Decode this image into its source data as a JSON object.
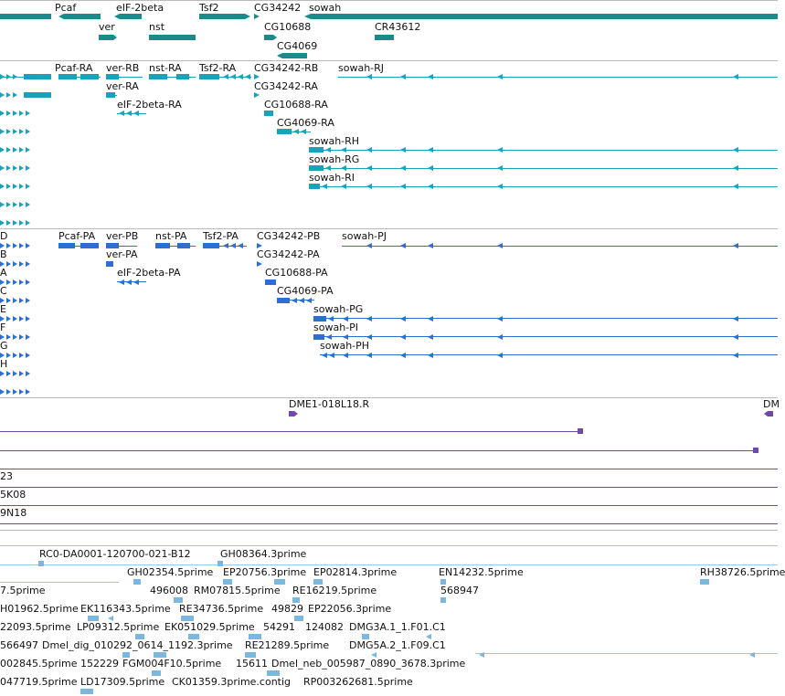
{
  "colors": {
    "gene": "#1a8a8c",
    "transcript_a": "#1aa3b8",
    "transcript_b": "#2b6fd0",
    "clone": "#7049a6",
    "est": "#7ab8e0",
    "divider": "#bbbbbb"
  },
  "genes": [
    {
      "label": "Pcaf"
    },
    {
      "label": "eIF-2beta"
    },
    {
      "label": "Tsf2"
    },
    {
      "label": "CG34242"
    },
    {
      "label": "sowah"
    },
    {
      "label": "ver"
    },
    {
      "label": "nst"
    },
    {
      "label": "CG10688"
    },
    {
      "label": "CR43612"
    },
    {
      "label": "CG4069"
    }
  ],
  "transcripts_a": [
    {
      "label": "Pcaf-RA"
    },
    {
      "label": "ver-RB"
    },
    {
      "label": "nst-RA"
    },
    {
      "label": "Tsf2-RA"
    },
    {
      "label": "CG34242-RB"
    },
    {
      "label": "sowah-RJ"
    },
    {
      "label": "ver-RA"
    },
    {
      "label": "CG34242-RA"
    },
    {
      "label": "eIF-2beta-RA"
    },
    {
      "label": "CG10688-RA"
    },
    {
      "label": "CG4069-RA"
    },
    {
      "label": "sowah-RH"
    },
    {
      "label": "sowah-RG"
    },
    {
      "label": "sowah-RI"
    }
  ],
  "transcripts_b": [
    {
      "label": "D"
    },
    {
      "label": "Pcaf-PA"
    },
    {
      "label": "ver-PB"
    },
    {
      "label": "nst-PA"
    },
    {
      "label": "Tsf2-PA"
    },
    {
      "label": "CG34242-PB"
    },
    {
      "label": "sowah-PJ"
    },
    {
      "label": "B"
    },
    {
      "label": "ver-PA"
    },
    {
      "label": "CG34242-PA"
    },
    {
      "label": "A"
    },
    {
      "label": "eIF-2beta-PA"
    },
    {
      "label": "CG10688-PA"
    },
    {
      "label": "C"
    },
    {
      "label": "CG4069-PA"
    },
    {
      "label": "E"
    },
    {
      "label": "sowah-PG"
    },
    {
      "label": "F"
    },
    {
      "label": "sowah-PI"
    },
    {
      "label": "G"
    },
    {
      "label": "sowah-PH"
    },
    {
      "label": "H"
    }
  ],
  "clones": [
    {
      "label": "DME1-018L18.R"
    },
    {
      "label": "DM"
    },
    {
      "label": "23"
    },
    {
      "label": "5K08"
    },
    {
      "label": "9N18"
    }
  ],
  "ests": [
    {
      "label": "RC0-DA0001-120700-021-B12"
    },
    {
      "label": "GH08364.3prime"
    },
    {
      "label": "GH02354.5prime"
    },
    {
      "label": "EP20756.3prime"
    },
    {
      "label": "EP02814.3prime"
    },
    {
      "label": "EN14232.5prime"
    },
    {
      "label": "RH38726.5prime"
    },
    {
      "label": "7.5prime"
    },
    {
      "label": "496008"
    },
    {
      "label": "RM07815.5prime"
    },
    {
      "label": "RE16219.5prime"
    },
    {
      "label": "568947"
    },
    {
      "label": "H01962.5prime"
    },
    {
      "label": "EK116343.5prime"
    },
    {
      "label": "RE34736.5prime"
    },
    {
      "label": "49829"
    },
    {
      "label": "EP22056.3prime"
    },
    {
      "label": "22093.5prime"
    },
    {
      "label": "LP09312.5prime"
    },
    {
      "label": "EK051029.5prime"
    },
    {
      "label": "54291"
    },
    {
      "label": "124082"
    },
    {
      "label": "DMG3A.1_1.F01.C1"
    },
    {
      "label": "566497"
    },
    {
      "label": "Dmel_dig_010292_0614_1192.3prime"
    },
    {
      "label": "RE21289.5prime"
    },
    {
      "label": "DMG5A.2_1.F09.C1"
    },
    {
      "label": "002845.5prime"
    },
    {
      "label": "152229"
    },
    {
      "label": "FGM004F10.5prime"
    },
    {
      "label": "15611"
    },
    {
      "label": "Dmel_neb_005987_0890_3678.3prime"
    },
    {
      "label": "047719.5prime"
    },
    {
      "label": "LD17309.5prime"
    },
    {
      "label": "CK01359.3prime.contig"
    },
    {
      "label": "RP003262681.5prime"
    }
  ]
}
